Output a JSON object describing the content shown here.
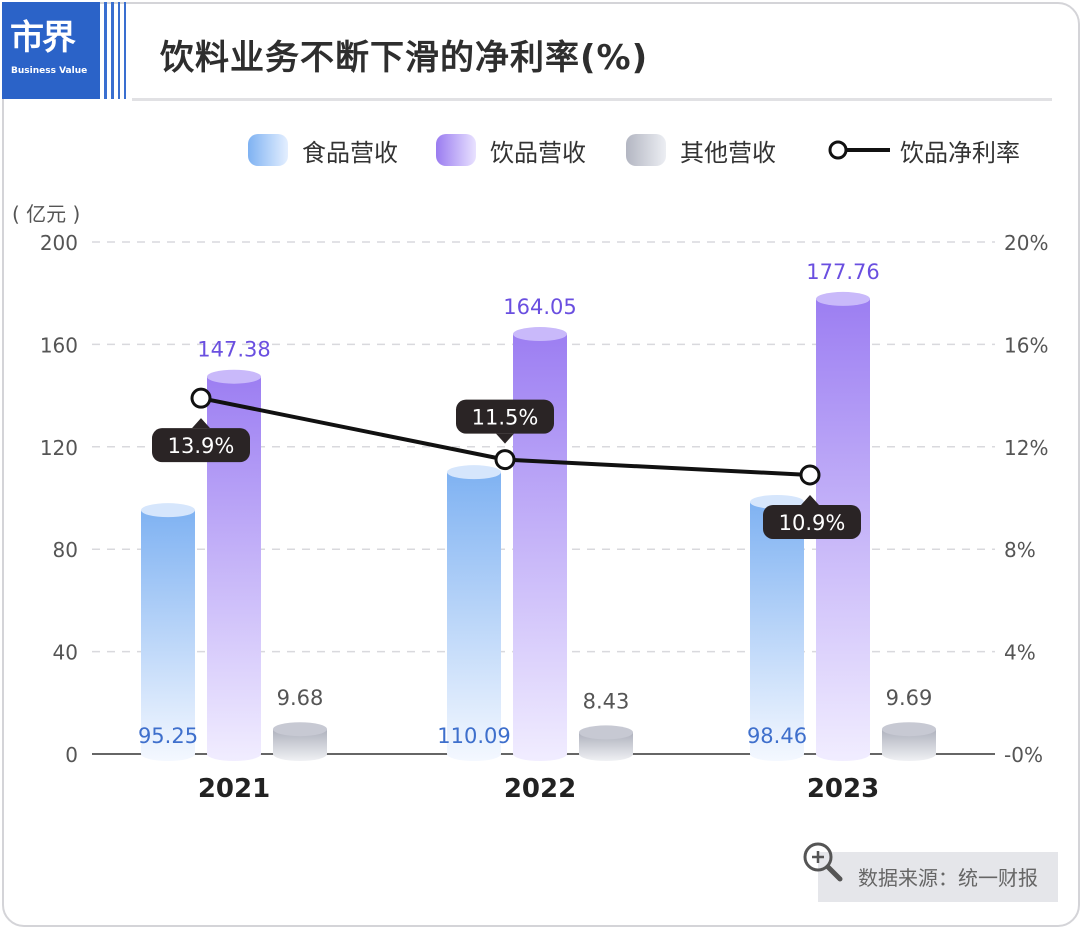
{
  "header": {
    "logo_text": "市界",
    "logo_sub": "Business Value",
    "title": "饮料业务不断下滑的净利率(%)"
  },
  "legend": {
    "food": "食品营收",
    "beverage": "饮品营收",
    "other": "其他营收",
    "margin": "饮品净利率"
  },
  "colors": {
    "food": "#7fb2f2",
    "beverage": "#a487f2",
    "other": "#b9bcc8",
    "line": "#111111",
    "food_label": "#3e6fcc",
    "beverage_label": "#6a4fe0",
    "other_label": "#555555",
    "brand": "#2b63c8"
  },
  "footer": {
    "source": "数据来源：统一财报"
  },
  "chart_data": {
    "type": "bar",
    "categories": [
      "2021",
      "2022",
      "2023"
    ],
    "series": [
      {
        "name": "食品营收",
        "values": [
          95.25,
          110.09,
          98.46
        ],
        "labels": [
          "95.25",
          "110.09",
          "98.46"
        ]
      },
      {
        "name": "饮品营收",
        "values": [
          147.38,
          164.05,
          177.76
        ],
        "labels": [
          "147.38",
          "164.05",
          "177.76"
        ]
      },
      {
        "name": "其他营收",
        "values": [
          9.68,
          8.43,
          9.69
        ],
        "labels": [
          "9.68",
          "8.43",
          "9.69"
        ]
      }
    ],
    "line_series": {
      "name": "饮品净利率",
      "values": [
        13.9,
        11.5,
        10.9
      ],
      "labels": [
        "13.9%",
        "11.5%",
        "10.9%"
      ]
    },
    "y_unit": "( 亿元 )",
    "ylim": [
      0,
      200
    ],
    "y_ticks": [
      "0",
      "40",
      "80",
      "120",
      "160",
      "200"
    ],
    "y2lim": [
      0,
      20
    ],
    "y2_ticks": [
      "-0%",
      "4%",
      "8%",
      "12%",
      "16%",
      "20%"
    ],
    "grid": true,
    "legend_position": "top-right"
  }
}
